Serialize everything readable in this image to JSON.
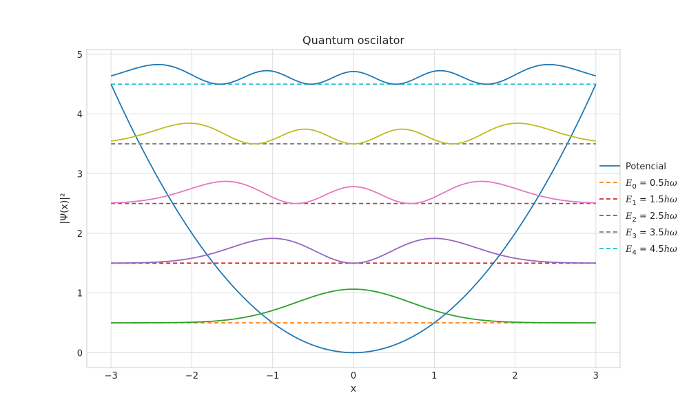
{
  "chart_data": {
    "type": "line",
    "title": "Quantum oscilator",
    "xlabel": "x",
    "ylabel": "|Ψ(x)|²",
    "xlim": [
      -3.3,
      3.3
    ],
    "ylim": [
      -0.25,
      5.08
    ],
    "xticks": [
      -3,
      -2,
      -1,
      0,
      1,
      2,
      3
    ],
    "xtick_labels": [
      "−3",
      "−2",
      "−1",
      "0",
      "1",
      "2",
      "3"
    ],
    "yticks": [
      0,
      1,
      2,
      3,
      4,
      5
    ],
    "ytick_labels": [
      "0",
      "1",
      "2",
      "3",
      "4",
      "5"
    ],
    "grid": true,
    "legend_position": "right, outside plot area",
    "x_range": [
      -3,
      3
    ],
    "series": [
      {
        "name": "Potencial",
        "kind": "potential",
        "formula": "0.5*x^2",
        "color": "#1f77b4",
        "style": "solid"
      },
      {
        "name": "E0 = 0.5hω",
        "legend_sub": "0",
        "legend_rest": " = 0.5",
        "kind": "energy",
        "energy": 0.5,
        "color": "#ff7f0e",
        "style": "dashed"
      },
      {
        "name": "E1 = 1.5hω",
        "legend_sub": "1",
        "legend_rest": " = 1.5",
        "kind": "energy",
        "energy": 1.5,
        "color": "#d62728",
        "style": "dashed"
      },
      {
        "name": "E2 = 2.5hω",
        "legend_sub": "2",
        "legend_rest": " = 2.5",
        "kind": "energy",
        "energy": 2.5,
        "color": "#8c564b",
        "style": "dashed"
      },
      {
        "name": "E3 = 3.5hω",
        "legend_sub": "3",
        "legend_rest": " = 3.5",
        "kind": "energy",
        "energy": 3.5,
        "color": "#7f7f7f",
        "style": "dashed"
      },
      {
        "name": "E4 = 4.5hω",
        "legend_sub": "4",
        "legend_rest": " = 4.5",
        "kind": "energy",
        "energy": 4.5,
        "color": "#17becf",
        "style": "dashed"
      },
      {
        "kind": "density",
        "n": 0,
        "offset": 0.5,
        "color": "#2ca02c",
        "style": "solid"
      },
      {
        "kind": "density",
        "n": 1,
        "offset": 1.5,
        "color": "#9467bd",
        "style": "solid"
      },
      {
        "kind": "density",
        "n": 2,
        "offset": 2.5,
        "color": "#e377c2",
        "style": "solid"
      },
      {
        "kind": "density",
        "n": 3,
        "offset": 3.5,
        "color": "#bcbd22",
        "style": "solid"
      },
      {
        "kind": "density",
        "n": 4,
        "offset": 4.5,
        "color": "#1f77b4",
        "style": "solid"
      }
    ],
    "legend_unit": "hω"
  }
}
